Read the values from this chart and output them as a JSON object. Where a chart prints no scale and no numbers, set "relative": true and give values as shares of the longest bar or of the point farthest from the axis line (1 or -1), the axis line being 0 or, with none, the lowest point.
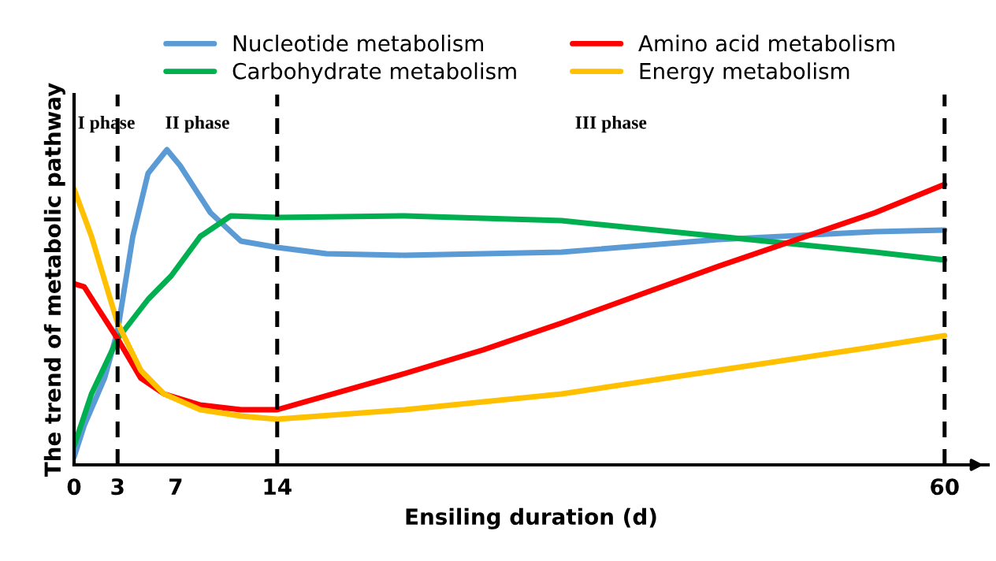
{
  "chart_data": {
    "type": "line",
    "relative": true,
    "xlabel": "Ensiling duration (d)",
    "ylabel": "The trend of metabolic pathway",
    "x": [
      0,
      0.7,
      2.1,
      3,
      4.05,
      5.1,
      6.4,
      7.3,
      9.4,
      11.5,
      14,
      17.4,
      22.8,
      33.6,
      44.4,
      55.2,
      60
    ],
    "xlim": [
      0,
      63
    ],
    "xticks": [
      0,
      3,
      7,
      14,
      60
    ],
    "series": [
      {
        "name": "Nucleotide metabolism",
        "color": "#5b9bd5",
        "values": [
          0.025,
          0.125,
          0.275,
          0.425,
          0.725,
          0.925,
          1.0,
          0.95,
          0.8,
          0.71,
          0.69,
          0.67,
          0.665,
          0.675,
          0.715,
          0.74,
          0.745
        ]
      },
      {
        "name": "Carbohydrate metabolism",
        "color": "#00b050",
        "x": [
          0,
          1.2,
          3,
          5.1,
          6.7,
          8.7,
          10.8,
          14,
          22.8,
          33.6,
          44.4,
          55.2,
          60
        ],
        "values": [
          0.06,
          0.225,
          0.4,
          0.525,
          0.6,
          0.725,
          0.79,
          0.785,
          0.79,
          0.775,
          0.725,
          0.675,
          0.65
        ]
      },
      {
        "name": "Amino acid metabolism",
        "color": "#ff0000",
        "x": [
          0,
          0.7,
          1.6,
          3,
          4.6,
          6.2,
          8.7,
          11.5,
          14,
          22.8,
          28.2,
          33.6,
          44.4,
          55.2,
          60
        ],
        "values": [
          0.575,
          0.565,
          0.5,
          0.4,
          0.275,
          0.225,
          0.19,
          0.175,
          0.175,
          0.29,
          0.365,
          0.45,
          0.63,
          0.8,
          0.89
        ]
      },
      {
        "name": "Energy metabolism",
        "color": "#ffc000",
        "x": [
          0,
          1.2,
          2.5,
          3,
          4.6,
          6.2,
          8.7,
          11.5,
          14,
          22.8,
          33.6,
          44.4,
          55.2,
          60
        ],
        "values": [
          0.875,
          0.725,
          0.525,
          0.45,
          0.3,
          0.225,
          0.175,
          0.155,
          0.145,
          0.175,
          0.225,
          0.3,
          0.375,
          0.41
        ]
      }
    ],
    "ref_lines": [
      {
        "axis": "x",
        "value": 3,
        "color": "#000000",
        "line_style": "dashed"
      },
      {
        "axis": "x",
        "value": 14,
        "color": "#000000",
        "line_style": "dashed"
      },
      {
        "axis": "x",
        "value": 60,
        "color": "#000000",
        "line_style": "dashed"
      }
    ],
    "annotations": [
      "I phase",
      "II phase",
      "III phase"
    ],
    "legend": "top",
    "grid": false,
    "marker": "none",
    "line_style": "solid"
  }
}
